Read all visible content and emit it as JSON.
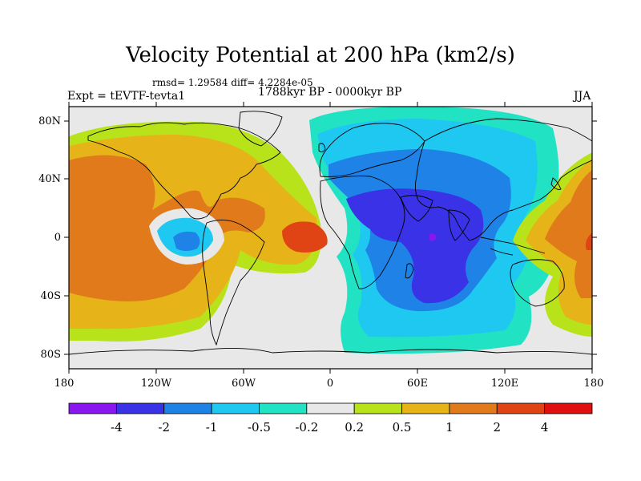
{
  "header": {
    "title": "Velocity Potential at 200 hPa (km2/s)",
    "stats": "rmsd= 1.29584 diff= 4.2284e-05",
    "period": "1788kyr BP - 0000kyr BP",
    "experiment": "Expt = tEVTF-tevta1",
    "season": "JJA"
  },
  "axes": {
    "y_ticks": [
      "80N",
      "40N",
      "0",
      "40S",
      "80S"
    ],
    "x_ticks": [
      "180",
      "120W",
      "60W",
      "0",
      "60E",
      "120E",
      "180"
    ]
  },
  "colorbar": {
    "labels": [
      "-4",
      "-2",
      "-1",
      "-0.5",
      "-0.2",
      "0.2",
      "0.5",
      "1",
      "2",
      "4"
    ],
    "colors": [
      "#8a17f0",
      "#3a32e6",
      "#1f82e6",
      "#1ec8f0",
      "#21e3c4",
      "#e8e8e8",
      "#b8e21a",
      "#e6b319",
      "#e07a1a",
      "#e04414",
      "#e01010"
    ]
  },
  "map": {
    "palette": {
      "ocean_neutral": "#e8e8e8",
      "neg_light": "#21e3c4",
      "neg_mid": "#1ec8f0",
      "neg_strong": "#1f82e6",
      "neg_deep": "#3a32e6",
      "neg_core": "#8a17f0",
      "pos_light": "#b8e21a",
      "pos_mid": "#e6b319",
      "pos_strong": "#e07a1a",
      "pos_deep": "#e04414"
    },
    "projection": "cylindrical-equidistant"
  }
}
